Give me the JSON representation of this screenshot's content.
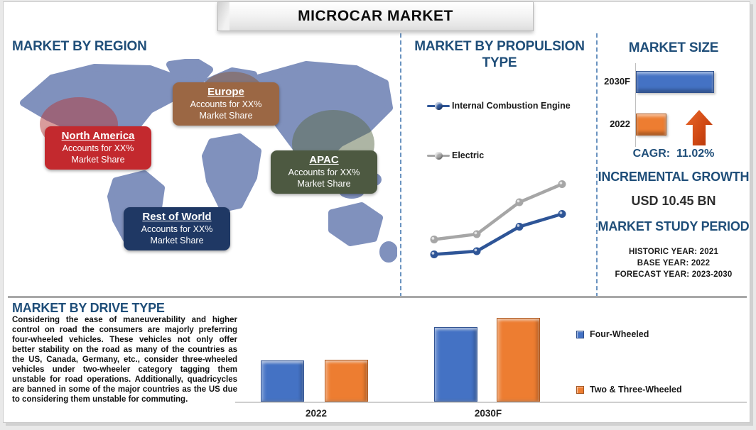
{
  "banner": {
    "title": "MICROCAR MARKET"
  },
  "region_section": {
    "title": "MARKET BY REGION",
    "regions": [
      {
        "name": "North America",
        "share_line1": "Accounts for XX%",
        "share_line2": "Market Share",
        "color": "#C3292E"
      },
      {
        "name": "Europe",
        "share_line1": "Accounts for XX%",
        "share_line2": "Market Share",
        "color": "#9B6744"
      },
      {
        "name": "APAC",
        "share_line1": "Accounts for XX%",
        "share_line2": "Market Share",
        "color": "#4D5941"
      },
      {
        "name": "Rest of World",
        "share_line1": "Accounts for XX%",
        "share_line2": "Market Share",
        "color": "#1F3864"
      }
    ]
  },
  "propulsion_section": {
    "title": "MARKET BY PROPULSION TYPE",
    "legend": [
      {
        "label": "Internal Combustion Engine",
        "color": "#2E5597"
      },
      {
        "label": "Electric",
        "color": "#A6A6A6"
      }
    ]
  },
  "market_size_section": {
    "title": "MARKET SIZE",
    "cagr_label": "CAGR:",
    "cagr_value": "11.02%",
    "incremental_growth_title": "INCREMENTAL GROWTH",
    "incremental_growth_value": "USD 10.45 BN",
    "study_period_title": "MARKET STUDY PERIOD",
    "study_period_lines": [
      "HISTORIC YEAR: 2021",
      "BASE YEAR: 2022",
      "FORECAST YEAR: 2023-2030"
    ]
  },
  "drive_section": {
    "title": "MARKET BY DRIVE TYPE",
    "paragraph": "Considering the ease of maneuverability and higher control on road the consumers are majorly preferring four-wheeled vehicles. These vehicles not only offer better stability on the road as many of the countries as the US, Canada, Germany, etc., consider three-wheeled vehicles under two-wheeler category tagging them unstable for road operations. Additionally, quadricycles are banned in some of the major countries as the US due to considering them unstable for commuting."
  },
  "chart_data": [
    {
      "id": "propulsion_trend",
      "type": "line",
      "title": "MARKET BY PROPULSION TYPE",
      "x": [
        1,
        2,
        3,
        4
      ],
      "x_tick_labels": [],
      "series": [
        {
          "name": "Internal Combustion Engine",
          "color": "#2E5597",
          "values": [
            21,
            24,
            47,
            59
          ]
        },
        {
          "name": "Electric",
          "color": "#A6A6A6",
          "values": [
            35,
            40,
            70,
            87
          ]
        }
      ],
      "value_scale": "relative-estimated-from-pixels",
      "grid": false,
      "legend_position": "top-left"
    },
    {
      "id": "market_size",
      "type": "bar",
      "orientation": "horizontal",
      "title": "MARKET SIZE",
      "categories": [
        "2030F",
        "2022"
      ],
      "values": [
        100,
        39
      ],
      "colors": [
        "#4472C4",
        "#ED7D31"
      ],
      "value_scale": "relative-estimated-from-pixels",
      "annotation": "CAGR: 11.02%"
    },
    {
      "id": "drive_type",
      "type": "bar",
      "title": "MARKET BY DRIVE TYPE",
      "categories": [
        "2022",
        "2030F"
      ],
      "series": [
        {
          "name": "Four-Wheeled",
          "color": "#4472C4",
          "values": [
            49,
            89
          ]
        },
        {
          "name": "Two & Three-Wheeled",
          "color": "#ED7D31",
          "values": [
            50,
            100
          ]
        }
      ],
      "value_scale": "relative-estimated-from-pixels",
      "legend_position": "right",
      "grid": false
    }
  ]
}
